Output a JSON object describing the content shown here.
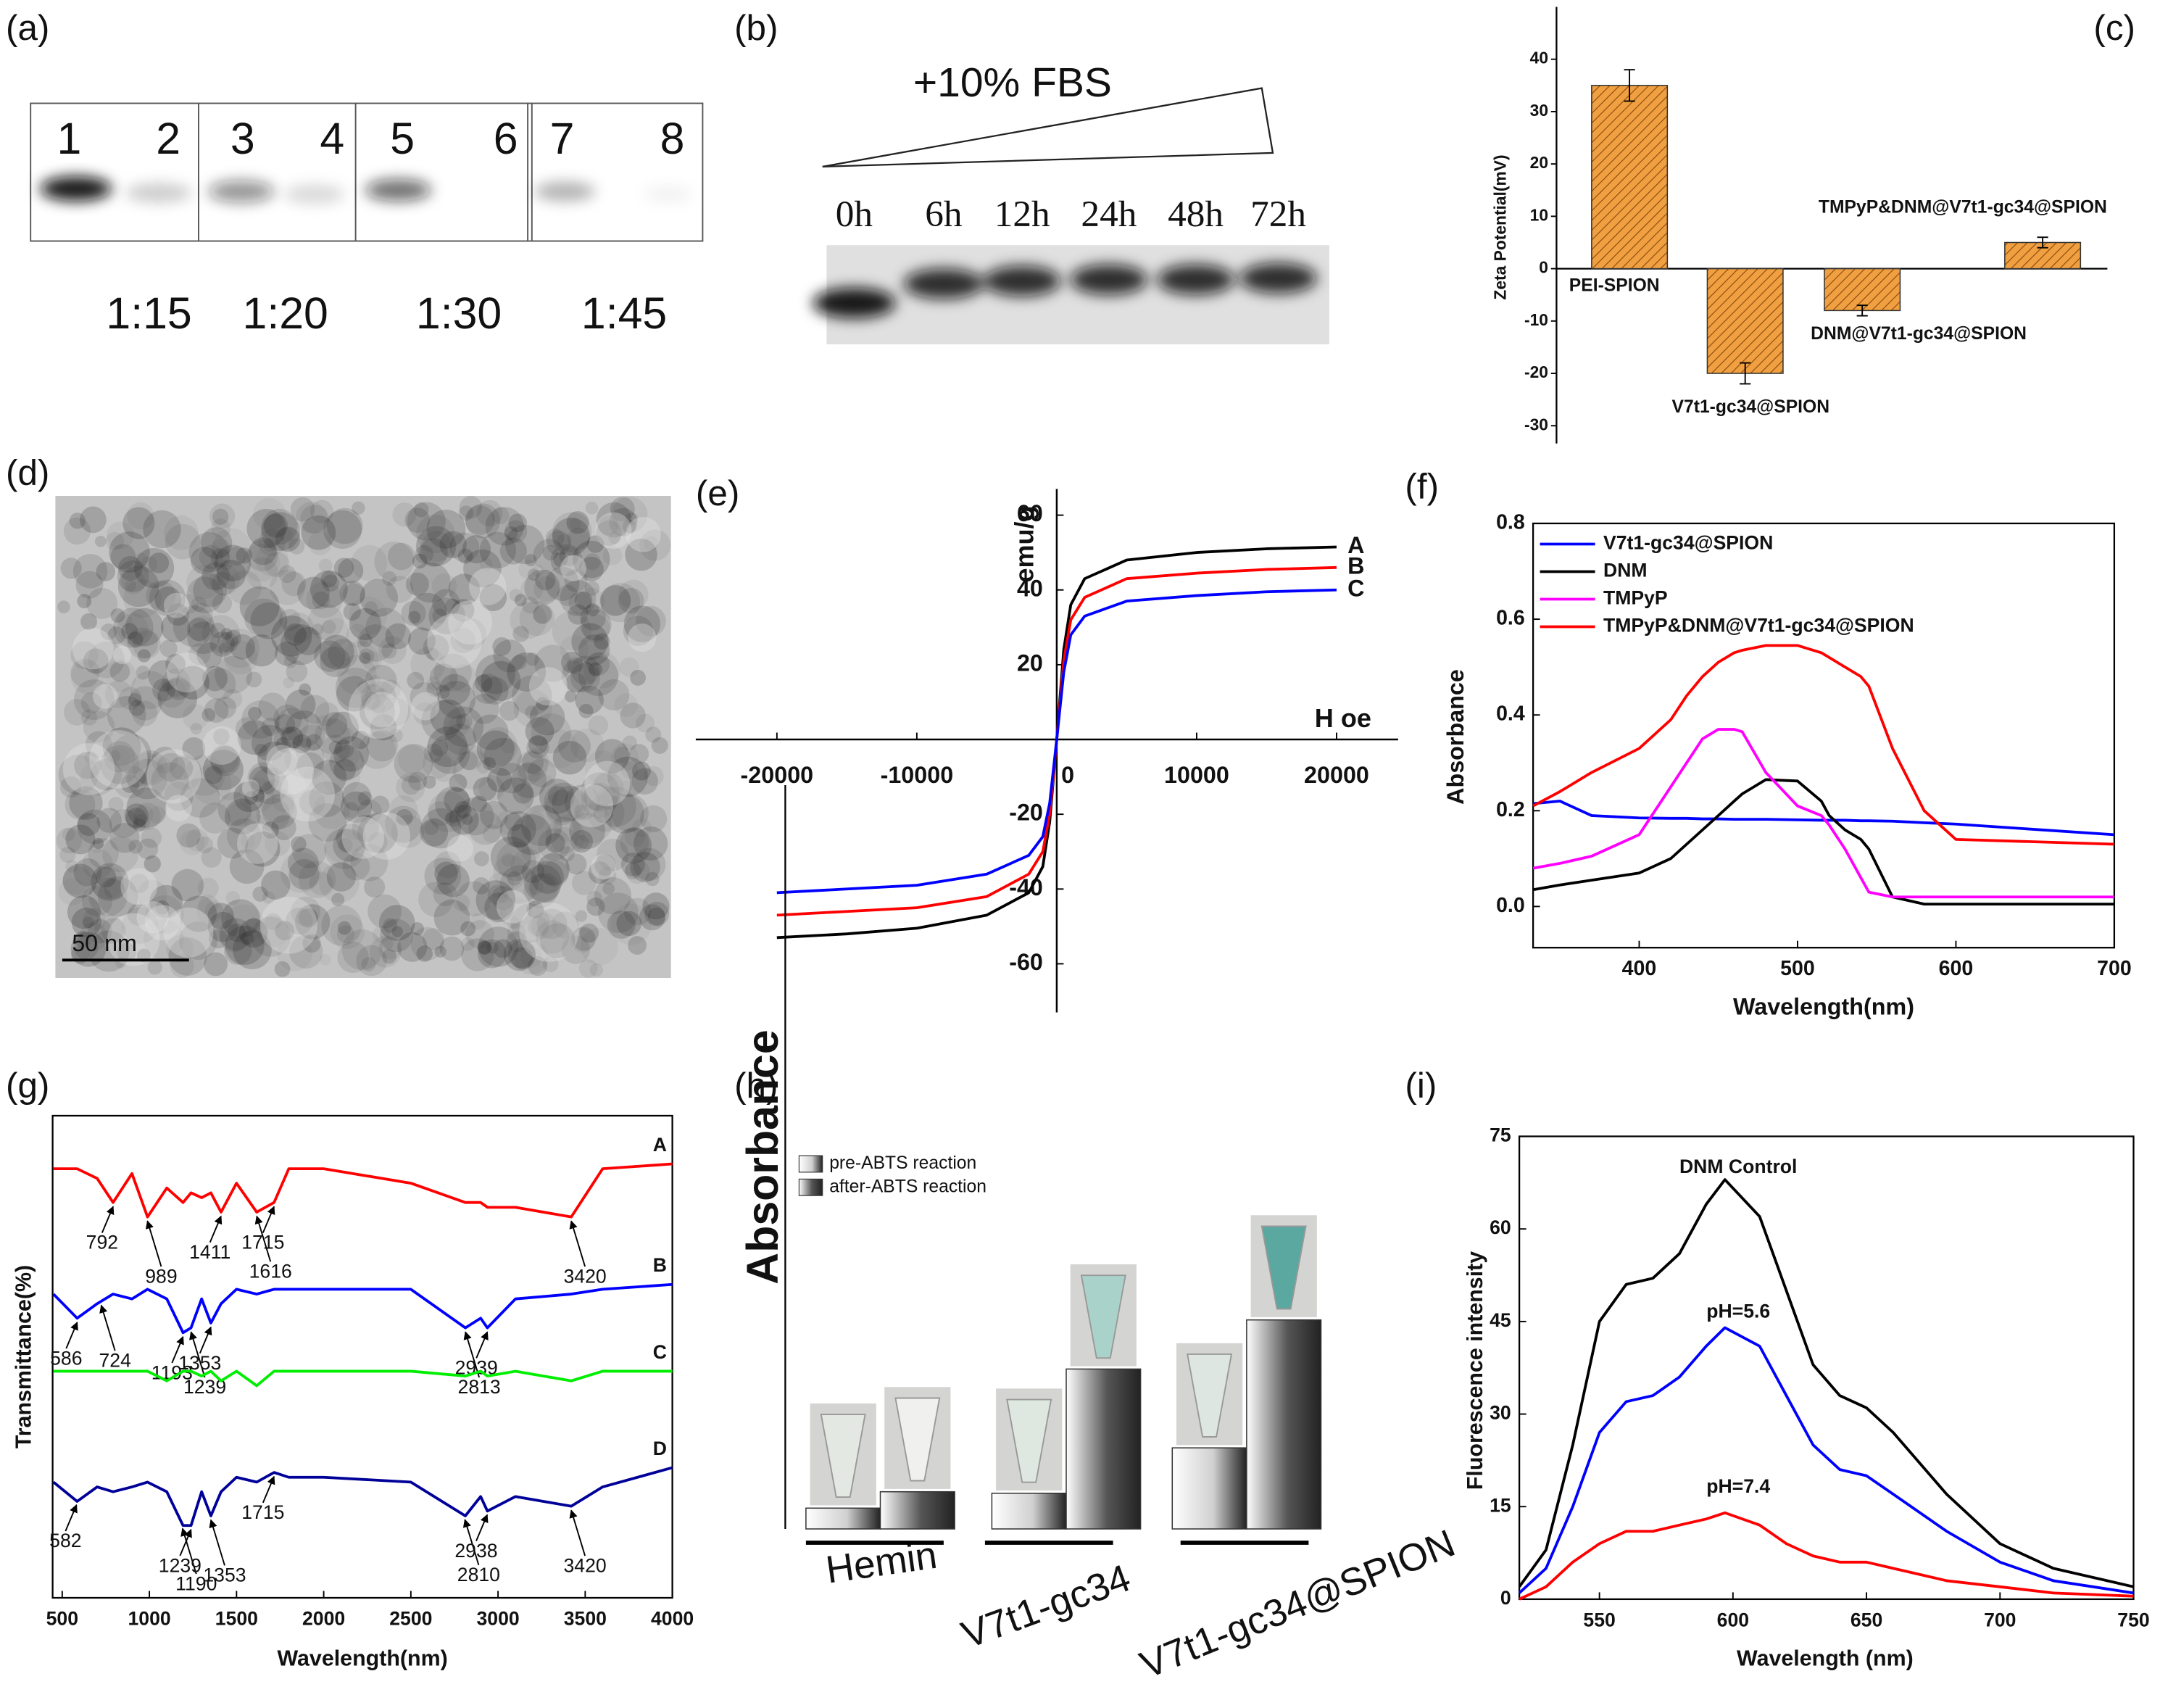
{
  "chart_data": [
    {
      "type": "gel",
      "panel": "(a)",
      "lanes": [
        "1",
        "2",
        "3",
        "4",
        "5",
        "6",
        "7",
        "8"
      ],
      "groups": [
        "1:15",
        "1:20",
        "1:30",
        "1:45"
      ]
    },
    {
      "type": "gel",
      "panel": "(b)",
      "title": "+10% FBS",
      "lanes": [
        "0h",
        "6h",
        "12h",
        "24h",
        "48h",
        "72h"
      ]
    },
    {
      "type": "bar",
      "panel": "(c)",
      "ylabel": "Zeta Potential(mV)",
      "categories": [
        "PEI-SPION",
        "V7t1-gc34@SPION",
        "DNM@V7t1-gc34@SPION",
        "TMPyP&DNM@V7t1-gc34@SPION"
      ],
      "values": [
        35,
        -20,
        -8,
        5
      ],
      "errors": [
        3,
        2,
        1,
        1
      ],
      "color": "#f0a040",
      "ylim": [
        -33.4,
        50
      ],
      "yticks": [
        -30,
        -20,
        -10,
        0,
        10,
        20,
        30,
        40
      ]
    },
    {
      "type": "image",
      "panel": "(d)",
      "scale_bar": "50 nm"
    },
    {
      "type": "line",
      "panel": "(e)",
      "xlabel": "H oe",
      "ylabel": "emu/g",
      "x": [
        -20000,
        -15000,
        -10000,
        -5000,
        -2000,
        -1000,
        -500,
        0,
        500,
        1000,
        2000,
        5000,
        10000,
        15000,
        20000
      ],
      "series": [
        {
          "name": "A",
          "color": "#000000",
          "values": [
            -53,
            -52,
            -50.5,
            -47,
            -41,
            -34,
            -22,
            0,
            24,
            36,
            43,
            48,
            50,
            51,
            51.5
          ]
        },
        {
          "name": "B",
          "color": "#ff0000",
          "values": [
            -47,
            -46,
            -45,
            -42,
            -36,
            -30,
            -20,
            0,
            21,
            32,
            38,
            43,
            44.5,
            45.5,
            46
          ]
        },
        {
          "name": "C",
          "color": "#0000ff",
          "values": [
            -41,
            -40,
            -39,
            -36,
            -31,
            -26,
            -17,
            0,
            18,
            28,
            33,
            37,
            38.5,
            39.5,
            40
          ]
        }
      ],
      "xlim": [
        -25800,
        24400
      ],
      "ylim": [
        -73,
        67
      ],
      "xticks": [
        -20000,
        -10000,
        0,
        10000,
        20000
      ],
      "yticks": [
        -60,
        -40,
        -20,
        20,
        40,
        60
      ]
    },
    {
      "type": "line",
      "panel": "(f)",
      "xlabel": "Wavelength(nm)",
      "ylabel": "Absorbance",
      "x": [
        333,
        350,
        370,
        400,
        420,
        430,
        440,
        450,
        460,
        465,
        480,
        500,
        515,
        520,
        530,
        540,
        545,
        560,
        580,
        600,
        700
      ],
      "series": [
        {
          "name": "V7t1-gc34@SPION",
          "color": "#0000ff",
          "values": [
            0.215,
            0.22,
            0.19,
            0.185,
            0.184,
            0.184,
            0.183,
            0.183,
            0.182,
            0.182,
            0.182,
            0.181,
            0.18,
            0.18,
            0.18,
            0.179,
            0.179,
            0.178,
            0.175,
            0.172,
            0.15
          ]
        },
        {
          "name": "DNM",
          "color": "#000000",
          "values": [
            0.035,
            0.045,
            0.055,
            0.07,
            0.1,
            0.13,
            0.16,
            0.19,
            0.22,
            0.235,
            0.265,
            0.262,
            0.22,
            0.19,
            0.16,
            0.14,
            0.12,
            0.02,
            0.005,
            0.005,
            0.005
          ]
        },
        {
          "name": "TMPyP",
          "color": "#ff00ff",
          "values": [
            0.08,
            0.09,
            0.105,
            0.15,
            0.25,
            0.3,
            0.35,
            0.37,
            0.37,
            0.365,
            0.28,
            0.21,
            0.19,
            0.17,
            0.12,
            0.06,
            0.03,
            0.02,
            0.02,
            0.02,
            0.02
          ]
        },
        {
          "name": "TMPyP&DNM@V7t1-gc34@SPION",
          "color": "#ff0000",
          "values": [
            0.21,
            0.24,
            0.28,
            0.33,
            0.39,
            0.44,
            0.48,
            0.51,
            0.53,
            0.535,
            0.545,
            0.545,
            0.53,
            0.52,
            0.5,
            0.48,
            0.46,
            0.33,
            0.2,
            0.14,
            0.13
          ]
        }
      ],
      "xlim": [
        333,
        700
      ],
      "ylim": [
        -0.086,
        0.8
      ],
      "xticks": [
        400,
        500,
        600,
        700
      ],
      "yticks": [
        {
          "value": 0,
          "label": "0.0"
        },
        0.2,
        0.4,
        0.6,
        0.8
      ]
    },
    {
      "type": "line",
      "panel": "(g)",
      "xlabel": "Wavelength(nm)",
      "ylabel": "Transmittance(%)",
      "x": [
        450,
        586,
        700,
        792,
        900,
        989,
        1100,
        1193,
        1239,
        1300,
        1353,
        1411,
        1500,
        1616,
        1715,
        1800,
        2000,
        2500,
        2813,
        2900,
        2939,
        3100,
        3420,
        3600,
        4000
      ],
      "series": [
        {
          "name": "A",
          "color": "#ff0000",
          "values": [
            89,
            89,
            87,
            82,
            88,
            79,
            85,
            82,
            84,
            83,
            84,
            80,
            86,
            80,
            82,
            89,
            89,
            86,
            82,
            82,
            81,
            81,
            79,
            89,
            90
          ],
          "peaks": [
            792,
            989,
            1411,
            1616,
            1715,
            3420
          ]
        },
        {
          "name": "B",
          "color": "#0000ff",
          "values": [
            63,
            58,
            61,
            63,
            62,
            64,
            62,
            55,
            56,
            62,
            57,
            61,
            64,
            63,
            64,
            64,
            64,
            64,
            56,
            58,
            56,
            62,
            63,
            64,
            65
          ],
          "peaks": [
            586,
            724,
            1193,
            1239,
            1353,
            2813,
            2939
          ]
        },
        {
          "name": "C",
          "color": "#00ee00",
          "values": [
            47,
            47,
            47,
            47,
            47,
            47,
            45,
            47,
            47,
            46,
            47,
            45,
            47,
            44,
            47,
            47,
            47,
            47,
            46,
            47,
            46,
            47,
            45,
            47,
            47
          ]
        },
        {
          "name": "D",
          "color": "#000099",
          "values": [
            24,
            20,
            23,
            22,
            23,
            24,
            22,
            15,
            15,
            22,
            17,
            22,
            25,
            24,
            26,
            25,
            25,
            24,
            17,
            21,
            18,
            21,
            19,
            23,
            27
          ],
          "peaks": [
            582,
            1190,
            1239,
            1353,
            1715,
            2810,
            2938,
            3420
          ]
        }
      ],
      "xlim": [
        445,
        4000
      ],
      "ylim": [
        0,
        100
      ],
      "xticks": [
        500,
        1000,
        1500,
        2000,
        2500,
        3000,
        3500,
        4000
      ]
    },
    {
      "type": "bar",
      "panel": "(h)",
      "ylabel": "Absorbance",
      "categories": [
        "Hemin",
        "V7t1-gc34",
        "V7t1-gc34@SPION"
      ],
      "series": [
        {
          "name": "pre-ABTS  reaction",
          "color": "#d0d0d0",
          "values": [
            2.8,
            4.8,
            10.9
          ]
        },
        {
          "name": "after-ABTS reaction",
          "color": "#555555",
          "values": [
            5,
            21.5,
            28.1
          ]
        }
      ],
      "ylim": [
        0,
        100
      ]
    },
    {
      "type": "line",
      "panel": "(i)",
      "xlabel": "Wavelength (nm)",
      "ylabel": "Fluorescence intensity",
      "x": [
        520,
        530,
        540,
        550,
        560,
        570,
        580,
        590,
        597,
        610,
        620,
        630,
        640,
        650,
        660,
        680,
        700,
        720,
        750
      ],
      "series": [
        {
          "name": "DNM Control",
          "color": "#000000",
          "values": [
            2,
            8,
            25,
            45,
            51,
            52,
            56,
            64,
            68,
            62,
            50,
            38,
            33,
            31,
            27,
            17,
            9,
            5,
            2
          ]
        },
        {
          "name": "pH=5.6",
          "color": "#0000ff",
          "values": [
            1,
            5,
            15,
            27,
            32,
            33,
            36,
            41,
            44,
            41,
            33,
            25,
            21,
            20,
            17,
            11,
            6,
            3,
            1
          ]
        },
        {
          "name": "pH=7.4",
          "color": "#ff0000",
          "values": [
            0,
            2,
            6,
            9,
            11,
            11,
            12,
            13,
            14,
            12,
            9,
            7,
            6,
            6,
            5,
            3,
            2,
            1,
            0.5
          ]
        }
      ],
      "xlim": [
        520,
        750
      ],
      "ylim": [
        0,
        75
      ],
      "xticks": [
        550,
        600,
        650,
        700,
        750
      ],
      "yticks": [
        0,
        15,
        30,
        45,
        60,
        75
      ]
    }
  ]
}
